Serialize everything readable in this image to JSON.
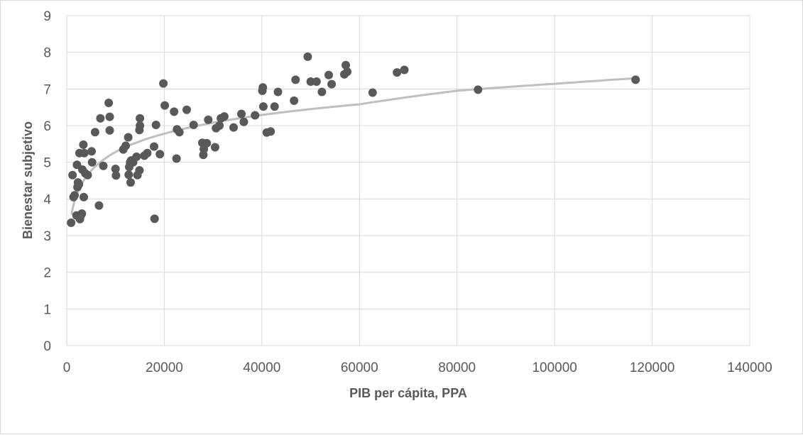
{
  "colors": {
    "points": "#595959",
    "trendline": "#bfbfbf",
    "gridlines": "#d9d9d9",
    "text": "#595959",
    "background": "#ffffff"
  },
  "chart_data": {
    "type": "scatter",
    "title": "",
    "xlabel": "PIB per cápita, PPA",
    "ylabel": "Bienestar subjetivo",
    "xlim": [
      0,
      140000
    ],
    "ylim": [
      0,
      9
    ],
    "x_ticks": [
      "0",
      "20000",
      "40000",
      "60000",
      "80000",
      "100000",
      "120000",
      "140000"
    ],
    "y_ticks": [
      "0",
      "1",
      "2",
      "3",
      "4",
      "5",
      "6",
      "7",
      "8",
      "9"
    ],
    "grid": true,
    "legend": "none",
    "trendline": {
      "type": "logarithmic",
      "points": [
        [
          1000,
          3.6
        ],
        [
          2000,
          4.1
        ],
        [
          5000,
          4.77
        ],
        [
          10000,
          5.28
        ],
        [
          20000,
          5.78
        ],
        [
          40000,
          6.29
        ],
        [
          60000,
          6.58
        ],
        [
          80000,
          6.95
        ],
        [
          100000,
          7.14
        ],
        [
          116500,
          7.29
        ]
      ]
    },
    "series": [
      {
        "points": [
          [
            900,
            3.35
          ],
          [
            1200,
            4.65
          ],
          [
            1400,
            4.05
          ],
          [
            1600,
            4.1
          ],
          [
            2000,
            3.55
          ],
          [
            2100,
            4.93
          ],
          [
            2200,
            4.32
          ],
          [
            2300,
            4.45
          ],
          [
            2500,
            4.4
          ],
          [
            2600,
            5.25
          ],
          [
            2700,
            3.45
          ],
          [
            2900,
            3.55
          ],
          [
            3100,
            3.6
          ],
          [
            3200,
            4.8
          ],
          [
            3400,
            5.48
          ],
          [
            3500,
            4.05
          ],
          [
            3600,
            5.25
          ],
          [
            3800,
            4.7
          ],
          [
            4300,
            4.65
          ],
          [
            5100,
            5.3
          ],
          [
            5200,
            5.0
          ],
          [
            5800,
            5.82
          ],
          [
            6600,
            3.82
          ],
          [
            6900,
            6.2
          ],
          [
            7500,
            4.9
          ],
          [
            8600,
            6.62
          ],
          [
            8800,
            6.24
          ],
          [
            8800,
            5.87
          ],
          [
            10000,
            4.82
          ],
          [
            10100,
            4.64
          ],
          [
            11600,
            5.35
          ],
          [
            12100,
            5.45
          ],
          [
            12600,
            5.68
          ],
          [
            12700,
            4.66
          ],
          [
            12800,
            4.87
          ],
          [
            13000,
            5.0
          ],
          [
            13100,
            4.45
          ],
          [
            13200,
            5.05
          ],
          [
            13600,
            5.0
          ],
          [
            14300,
            5.15
          ],
          [
            14500,
            4.65
          ],
          [
            14900,
            4.78
          ],
          [
            14900,
            5.88
          ],
          [
            15000,
            6.2
          ],
          [
            15000,
            6.0
          ],
          [
            15900,
            5.18
          ],
          [
            16500,
            5.25
          ],
          [
            17900,
            5.43
          ],
          [
            18000,
            3.46
          ],
          [
            18300,
            6.02
          ],
          [
            19100,
            5.22
          ],
          [
            19800,
            7.15
          ],
          [
            20100,
            6.55
          ],
          [
            22000,
            6.38
          ],
          [
            22500,
            5.1
          ],
          [
            22600,
            5.9
          ],
          [
            23100,
            5.82
          ],
          [
            24600,
            6.43
          ],
          [
            26000,
            6.02
          ],
          [
            27800,
            5.53
          ],
          [
            28000,
            5.2
          ],
          [
            28100,
            5.36
          ],
          [
            28700,
            5.52
          ],
          [
            29000,
            6.16
          ],
          [
            30400,
            5.41
          ],
          [
            30600,
            5.93
          ],
          [
            31300,
            6.0
          ],
          [
            31600,
            6.2
          ],
          [
            32300,
            6.25
          ],
          [
            34200,
            5.95
          ],
          [
            35800,
            6.32
          ],
          [
            36300,
            6.1
          ],
          [
            38600,
            6.28
          ],
          [
            40100,
            6.95
          ],
          [
            40200,
            7.04
          ],
          [
            40300,
            6.52
          ],
          [
            41000,
            5.81
          ],
          [
            41800,
            5.84
          ],
          [
            42600,
            6.52
          ],
          [
            43300,
            6.92
          ],
          [
            46600,
            6.68
          ],
          [
            46900,
            7.25
          ],
          [
            49400,
            7.88
          ],
          [
            50000,
            7.2
          ],
          [
            51200,
            7.2
          ],
          [
            52300,
            6.92
          ],
          [
            53700,
            7.38
          ],
          [
            54300,
            7.13
          ],
          [
            56900,
            7.4
          ],
          [
            57200,
            7.65
          ],
          [
            57500,
            7.47
          ],
          [
            62700,
            6.9
          ],
          [
            67700,
            7.45
          ],
          [
            69200,
            7.52
          ],
          [
            84300,
            6.98
          ],
          [
            116600,
            7.25
          ]
        ]
      }
    ]
  }
}
